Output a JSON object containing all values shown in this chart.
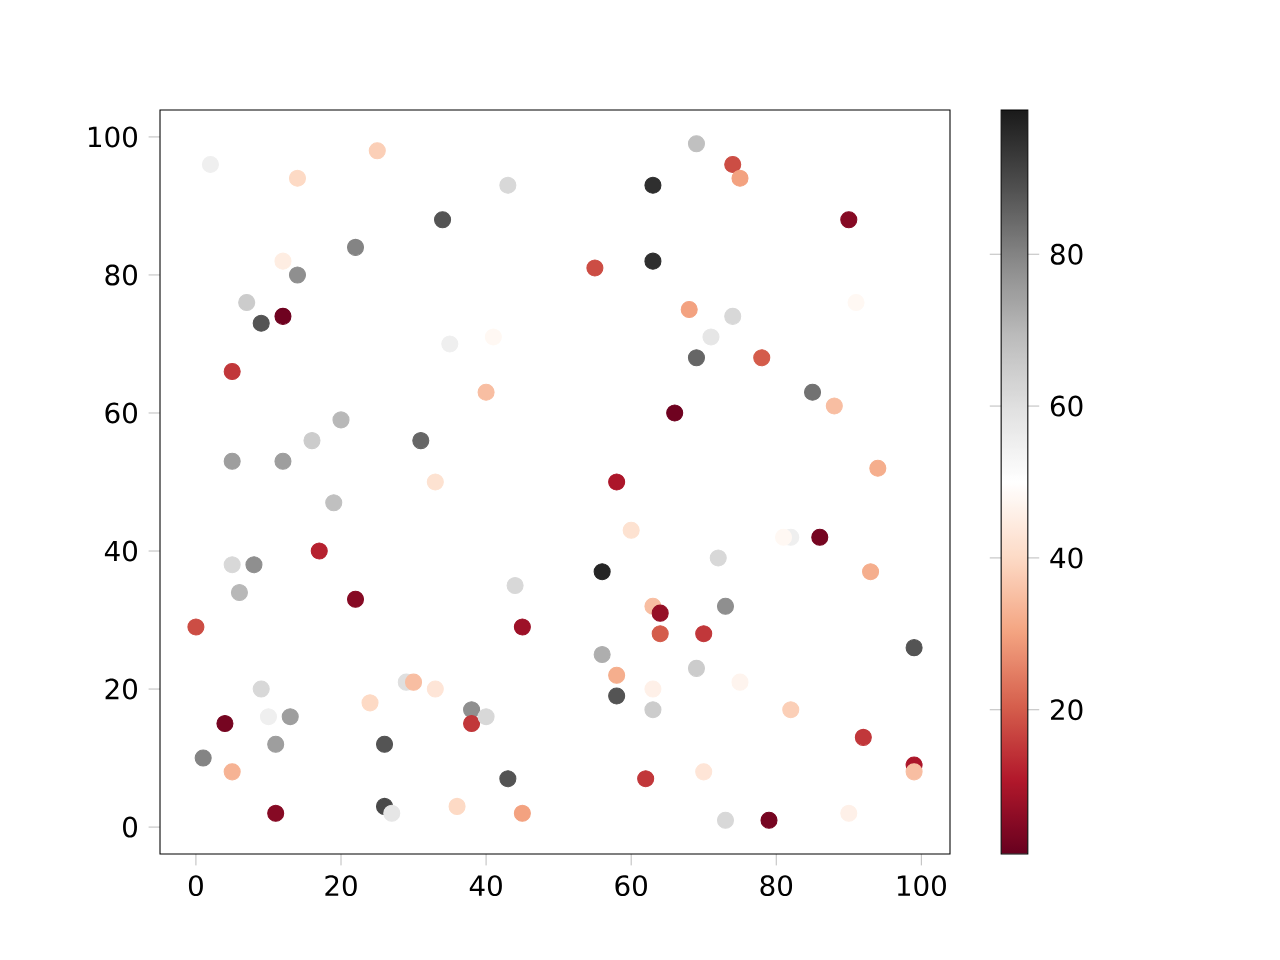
{
  "chart_data": {
    "type": "scatter",
    "marker": "circle",
    "grid": false,
    "x": [
      2,
      14,
      25,
      43,
      34,
      22,
      12,
      14,
      7,
      9,
      12,
      35,
      41,
      5,
      40,
      20,
      31,
      16,
      5,
      12,
      33,
      19,
      17,
      5,
      8,
      6,
      0,
      45,
      22,
      44,
      9,
      29,
      30,
      33,
      24,
      4,
      10,
      13,
      11,
      26,
      38,
      38,
      40,
      1,
      5,
      43,
      11,
      26,
      27,
      36,
      45,
      58,
      60,
      82,
      81,
      86,
      72,
      56,
      93,
      63,
      64,
      73,
      64,
      70,
      56,
      99,
      58,
      69,
      63,
      75,
      58,
      63,
      82,
      92,
      99,
      99,
      62,
      70,
      73,
      79,
      90,
      94,
      69,
      74,
      75,
      63,
      90,
      63,
      55,
      91,
      68,
      74,
      71,
      69,
      78,
      85,
      88,
      66
    ],
    "values": [
      96,
      94,
      98,
      93,
      88,
      84,
      82,
      80,
      76,
      73,
      74,
      70,
      71,
      66,
      63,
      59,
      56,
      56,
      53,
      53,
      50,
      47,
      40,
      38,
      38,
      34,
      29,
      29,
      33,
      35,
      20,
      21,
      21,
      20,
      18,
      15,
      16,
      16,
      12,
      12,
      17,
      15,
      16,
      10,
      8,
      7,
      2,
      3,
      2,
      3,
      2,
      50,
      43,
      42,
      42,
      42,
      39,
      37,
      37,
      32,
      31,
      32,
      28,
      28,
      25,
      26,
      22,
      23,
      20,
      21,
      19,
      17,
      17,
      13,
      9,
      8,
      7,
      8,
      1,
      1,
      2,
      52,
      99,
      96,
      94,
      93,
      88,
      82,
      81,
      76,
      75,
      74,
      71,
      68,
      68,
      63,
      61,
      60
    ],
    "cvalues": [
      55,
      40,
      38,
      62,
      88,
      80,
      45,
      78,
      65,
      88,
      2,
      55,
      48,
      15,
      35,
      70,
      85,
      65,
      75,
      75,
      42,
      68,
      12,
      62,
      78,
      70,
      18,
      8,
      5,
      62,
      62,
      60,
      35,
      43,
      40,
      3,
      55,
      75,
      75,
      88,
      78,
      15,
      62,
      80,
      33,
      88,
      5,
      90,
      58,
      40,
      30,
      10,
      42,
      55,
      48,
      3,
      62,
      97,
      32,
      35,
      7,
      78,
      20,
      15,
      72,
      88,
      32,
      65,
      46,
      47,
      88,
      65,
      38,
      15,
      10,
      35,
      15,
      43,
      62,
      3,
      46,
      32,
      68,
      18,
      30,
      95,
      5,
      95,
      18,
      48,
      30,
      62,
      58,
      85,
      20,
      83,
      35,
      2
    ],
    "xlim": [
      -4.95,
      103.95
    ],
    "ylim": [
      -3.9,
      103.9
    ],
    "xticks": [
      0,
      20,
      40,
      60,
      80,
      100
    ],
    "yticks": [
      0,
      20,
      40,
      60,
      80,
      100
    ],
    "clim": [
      1,
      99
    ],
    "cticks": [
      20,
      40,
      60,
      80
    ]
  }
}
